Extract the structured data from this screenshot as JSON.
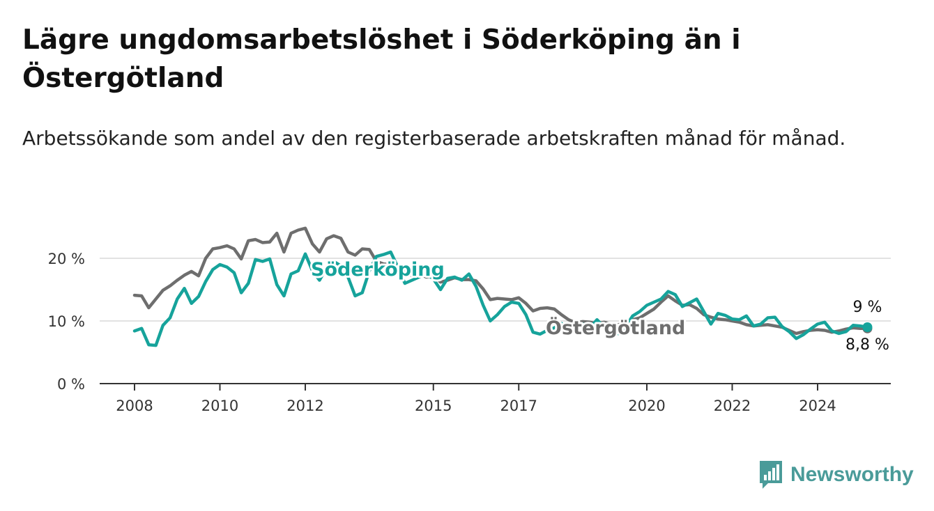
{
  "title": "Lägre ungdomsarbetslöshet i Söderköping än i Östergötland",
  "subtitle": "Arbetssökande som andel av den registerbaserade arbetskraften månad för månad.",
  "brand": {
    "name": "Newsworthy",
    "icon": "bar-chart-logo-icon",
    "color": "#4a9b99"
  },
  "chart_data": {
    "type": "line",
    "x_axis": {
      "type": "date",
      "range": [
        "2008-01",
        "2025-10"
      ],
      "ticks": [
        "2008",
        "2010",
        "2012",
        "2015",
        "2017",
        "2020",
        "2022",
        "2024"
      ]
    },
    "y_axis": {
      "range": [
        0,
        25
      ],
      "ticks": [
        "0 %",
        "10 %",
        "20 %"
      ],
      "tick_values": [
        0,
        10,
        20
      ],
      "grid": true
    },
    "series": [
      {
        "name": "Östergötland",
        "color": "#6e6e6e",
        "end_label": "8,8 %",
        "points": [
          [
            "2008-01",
            14.1
          ],
          [
            "2008-03",
            14.0
          ],
          [
            "2008-05",
            12.1
          ],
          [
            "2008-07",
            13.5
          ],
          [
            "2008-09",
            14.9
          ],
          [
            "2008-11",
            15.6
          ],
          [
            "2009-01",
            16.5
          ],
          [
            "2009-03",
            17.3
          ],
          [
            "2009-05",
            17.9
          ],
          [
            "2009-07",
            17.2
          ],
          [
            "2009-09",
            20.0
          ],
          [
            "2009-11",
            21.5
          ],
          [
            "2010-01",
            21.7
          ],
          [
            "2010-03",
            22.0
          ],
          [
            "2010-05",
            21.5
          ],
          [
            "2010-07",
            19.9
          ],
          [
            "2010-09",
            22.8
          ],
          [
            "2010-11",
            23.0
          ],
          [
            "2011-01",
            22.5
          ],
          [
            "2011-03",
            22.6
          ],
          [
            "2011-05",
            24.0
          ],
          [
            "2011-07",
            21.0
          ],
          [
            "2011-09",
            24.0
          ],
          [
            "2011-11",
            24.5
          ],
          [
            "2012-01",
            24.8
          ],
          [
            "2012-03",
            22.3
          ],
          [
            "2012-05",
            21.0
          ],
          [
            "2012-07",
            23.1
          ],
          [
            "2012-09",
            23.6
          ],
          [
            "2012-11",
            23.2
          ],
          [
            "2013-01",
            21.0
          ],
          [
            "2013-03",
            20.5
          ],
          [
            "2013-05",
            21.5
          ],
          [
            "2013-07",
            21.4
          ],
          [
            "2013-09",
            19.5
          ],
          [
            "2013-11",
            19.1
          ],
          [
            "2014-01",
            19.0
          ],
          [
            "2014-03",
            18.7
          ],
          [
            "2014-05",
            18.0
          ],
          [
            "2014-07",
            17.2
          ],
          [
            "2014-09",
            17.5
          ],
          [
            "2014-11",
            17.0
          ],
          [
            "2015-01",
            17.2
          ],
          [
            "2015-03",
            16.2
          ],
          [
            "2015-05",
            16.5
          ],
          [
            "2015-07",
            16.9
          ],
          [
            "2015-09",
            16.6
          ],
          [
            "2015-11",
            16.6
          ],
          [
            "2016-01",
            16.4
          ],
          [
            "2016-03",
            15.1
          ],
          [
            "2016-05",
            13.4
          ],
          [
            "2016-07",
            13.6
          ],
          [
            "2016-09",
            13.5
          ],
          [
            "2016-11",
            13.4
          ],
          [
            "2017-01",
            13.7
          ],
          [
            "2017-03",
            12.8
          ],
          [
            "2017-05",
            11.6
          ],
          [
            "2017-07",
            12.0
          ],
          [
            "2017-09",
            12.1
          ],
          [
            "2017-11",
            11.9
          ],
          [
            "2018-01",
            11.0
          ],
          [
            "2018-03",
            10.2
          ],
          [
            "2018-05",
            9.7
          ],
          [
            "2018-07",
            9.9
          ],
          [
            "2018-09",
            9.8
          ],
          [
            "2018-11",
            9.6
          ],
          [
            "2019-01",
            9.8
          ],
          [
            "2019-03",
            9.5
          ],
          [
            "2019-05",
            9.4
          ],
          [
            "2019-07",
            9.8
          ],
          [
            "2019-09",
            10.2
          ],
          [
            "2019-11",
            10.5
          ],
          [
            "2020-01",
            11.2
          ],
          [
            "2020-03",
            11.9
          ],
          [
            "2020-05",
            13.0
          ],
          [
            "2020-07",
            14.0
          ],
          [
            "2020-09",
            13.2
          ],
          [
            "2020-11",
            12.5
          ],
          [
            "2021-01",
            12.6
          ],
          [
            "2021-03",
            12.0
          ],
          [
            "2021-05",
            11.0
          ],
          [
            "2021-07",
            10.6
          ],
          [
            "2021-09",
            10.3
          ],
          [
            "2021-11",
            10.2
          ],
          [
            "2022-01",
            10.0
          ],
          [
            "2022-03",
            9.8
          ],
          [
            "2022-05",
            9.4
          ],
          [
            "2022-07",
            9.2
          ],
          [
            "2022-09",
            9.3
          ],
          [
            "2022-11",
            9.4
          ],
          [
            "2023-01",
            9.2
          ],
          [
            "2023-03",
            9.0
          ],
          [
            "2023-05",
            8.5
          ],
          [
            "2023-07",
            8.0
          ],
          [
            "2023-09",
            8.3
          ],
          [
            "2023-11",
            8.5
          ],
          [
            "2024-01",
            8.6
          ],
          [
            "2024-03",
            8.5
          ],
          [
            "2024-05",
            8.2
          ],
          [
            "2024-07",
            8.4
          ],
          [
            "2024-09",
            8.7
          ],
          [
            "2024-11",
            8.9
          ],
          [
            "2025-01",
            8.8
          ],
          [
            "2025-03",
            8.8
          ]
        ]
      },
      {
        "name": "Söderköping",
        "color": "#16a39b",
        "end_label": "9 %",
        "points": [
          [
            "2008-01",
            8.4
          ],
          [
            "2008-03",
            8.8
          ],
          [
            "2008-05",
            6.2
          ],
          [
            "2008-07",
            6.1
          ],
          [
            "2008-09",
            9.3
          ],
          [
            "2008-11",
            10.5
          ],
          [
            "2009-01",
            13.5
          ],
          [
            "2009-03",
            15.2
          ],
          [
            "2009-05",
            12.8
          ],
          [
            "2009-07",
            13.9
          ],
          [
            "2009-09",
            16.3
          ],
          [
            "2009-11",
            18.2
          ],
          [
            "2010-01",
            19.0
          ],
          [
            "2010-03",
            18.6
          ],
          [
            "2010-05",
            17.7
          ],
          [
            "2010-07",
            14.5
          ],
          [
            "2010-09",
            16.0
          ],
          [
            "2010-11",
            19.8
          ],
          [
            "2011-01",
            19.5
          ],
          [
            "2011-03",
            19.9
          ],
          [
            "2011-05",
            15.8
          ],
          [
            "2011-07",
            14.0
          ],
          [
            "2011-09",
            17.5
          ],
          [
            "2011-11",
            18.0
          ],
          [
            "2012-01",
            20.7
          ],
          [
            "2012-03",
            18.0
          ],
          [
            "2012-05",
            16.5
          ],
          [
            "2012-07",
            18.5
          ],
          [
            "2012-09",
            19.5
          ],
          [
            "2012-11",
            18.8
          ],
          [
            "2013-01",
            17.0
          ],
          [
            "2013-03",
            14.0
          ],
          [
            "2013-05",
            14.5
          ],
          [
            "2013-07",
            18.0
          ],
          [
            "2013-09",
            20.3
          ],
          [
            "2013-11",
            20.6
          ],
          [
            "2014-01",
            21.0
          ],
          [
            "2014-03",
            18.6
          ],
          [
            "2014-05",
            16.0
          ],
          [
            "2014-07",
            16.5
          ],
          [
            "2014-09",
            17.0
          ],
          [
            "2014-11",
            17.5
          ],
          [
            "2015-01",
            16.7
          ],
          [
            "2015-03",
            15.0
          ],
          [
            "2015-05",
            16.8
          ],
          [
            "2015-07",
            17.0
          ],
          [
            "2015-09",
            16.5
          ],
          [
            "2015-11",
            17.5
          ],
          [
            "2016-01",
            15.5
          ],
          [
            "2016-03",
            12.5
          ],
          [
            "2016-05",
            10.0
          ],
          [
            "2016-07",
            11.0
          ],
          [
            "2016-09",
            12.3
          ],
          [
            "2016-11",
            13.0
          ],
          [
            "2017-01",
            12.8
          ],
          [
            "2017-03",
            11.0
          ],
          [
            "2017-05",
            8.2
          ],
          [
            "2017-07",
            7.9
          ],
          [
            "2017-09",
            8.5
          ],
          [
            "2017-11",
            8.9
          ],
          [
            "2018-01",
            9.6
          ],
          [
            "2018-03",
            8.7
          ],
          [
            "2018-05",
            9.2
          ],
          [
            "2018-07",
            9.5
          ],
          [
            "2018-09",
            8.9
          ],
          [
            "2018-11",
            10.2
          ],
          [
            "2019-01",
            9.0
          ],
          [
            "2019-03",
            7.8
          ],
          [
            "2019-05",
            8.0
          ],
          [
            "2019-07",
            9.0
          ],
          [
            "2019-09",
            10.8
          ],
          [
            "2019-11",
            11.5
          ],
          [
            "2020-01",
            12.5
          ],
          [
            "2020-03",
            13.0
          ],
          [
            "2020-05",
            13.5
          ],
          [
            "2020-07",
            14.7
          ],
          [
            "2020-09",
            14.2
          ],
          [
            "2020-11",
            12.3
          ],
          [
            "2021-01",
            12.9
          ],
          [
            "2021-03",
            13.5
          ],
          [
            "2021-05",
            11.5
          ],
          [
            "2021-07",
            9.5
          ],
          [
            "2021-09",
            11.2
          ],
          [
            "2021-11",
            10.9
          ],
          [
            "2022-01",
            10.3
          ],
          [
            "2022-03",
            10.2
          ],
          [
            "2022-05",
            10.8
          ],
          [
            "2022-07",
            9.2
          ],
          [
            "2022-09",
            9.5
          ],
          [
            "2022-11",
            10.5
          ],
          [
            "2023-01",
            10.6
          ],
          [
            "2023-03",
            9.1
          ],
          [
            "2023-05",
            8.3
          ],
          [
            "2023-07",
            7.2
          ],
          [
            "2023-09",
            7.8
          ],
          [
            "2023-11",
            8.7
          ],
          [
            "2024-01",
            9.5
          ],
          [
            "2024-03",
            9.8
          ],
          [
            "2024-05",
            8.4
          ],
          [
            "2024-07",
            8.0
          ],
          [
            "2024-09",
            8.3
          ],
          [
            "2024-11",
            9.3
          ],
          [
            "2025-01",
            9.2
          ],
          [
            "2025-03",
            9.0
          ]
        ]
      }
    ]
  }
}
